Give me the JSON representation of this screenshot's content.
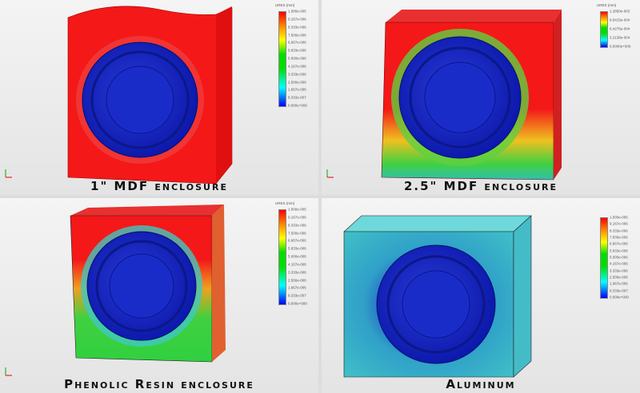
{
  "panels": [
    {
      "caption": "1\" MDF enclosure",
      "legend": {
        "title": "URES (mm)",
        "labels": [
          "1.000e-005",
          "9.167e-006",
          "8.333e-006",
          "7.500e-006",
          "6.667e-006",
          "5.833e-006",
          "5.000e-006",
          "4.167e-006",
          "3.333e-006",
          "2.500e-006",
          "1.667e-006",
          "8.333e-007",
          "0.000e+000"
        ]
      }
    },
    {
      "caption": "2.5\" MDF enclosure",
      "legend": {
        "title": "URES (mm)",
        "labels": [
          "1.2850e-003",
          "9.6415e-004",
          "6.4276e-004",
          "3.2138e-004",
          "0.0000e+000"
        ]
      }
    },
    {
      "caption": "Phenolic Resin  enclosure",
      "legend": {
        "title": "URES (mm)",
        "labels": [
          "1.000e-005",
          "9.167e-006",
          "8.333e-006",
          "7.500e-006",
          "6.667e-006",
          "5.833e-006",
          "5.000e-006",
          "4.167e-006",
          "3.333e-006",
          "2.500e-006",
          "1.667e-006",
          "8.333e-007",
          "0.000e+000"
        ]
      }
    },
    {
      "caption": "Aluminum",
      "legend": {
        "title": "",
        "labels": [
          "1.000e-005",
          "9.167e-006",
          "8.333e-006",
          "7.500e-006",
          "6.667e-006",
          "5.833e-006",
          "5.000e-006",
          "4.167e-006",
          "3.333e-006",
          "2.500e-006",
          "1.667e-006",
          "8.333e-007",
          "0.000e+000"
        ]
      }
    }
  ],
  "colors": {
    "max": "#ff0000",
    "mid": "#00dd00",
    "min": "#0000ff",
    "aluminum_face": "#3cbcc6"
  }
}
